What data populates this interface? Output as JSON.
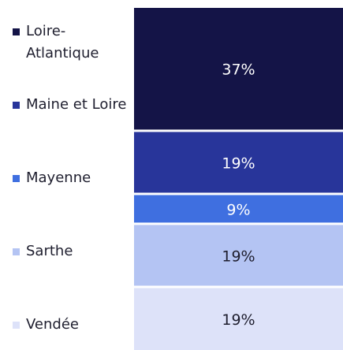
{
  "chart_data": {
    "type": "bar",
    "stacked": true,
    "categories": [
      null
    ],
    "series": [
      {
        "name": "Loire-Atlantique",
        "color": "#141447",
        "label_color": "#ffffff",
        "values": [
          37
        ],
        "value_labels": [
          "37%"
        ]
      },
      {
        "name": "Maine et Loire",
        "color": "#28359a",
        "label_color": "#ffffff",
        "values": [
          19
        ],
        "value_labels": [
          "19%"
        ]
      },
      {
        "name": "Mayenne",
        "color": "#3f6fe0",
        "label_color": "#ffffff",
        "values": [
          9
        ],
        "value_labels": [
          "9%"
        ]
      },
      {
        "name": "Sarthe",
        "color": "#b4c4f3",
        "label_color": "#1e1e2e",
        "values": [
          19
        ],
        "value_labels": [
          "19%"
        ]
      },
      {
        "name": "Vendée",
        "color": "#dde2f9",
        "label_color": "#1e1e2e",
        "values": [
          19
        ],
        "value_labels": [
          "19%"
        ]
      }
    ]
  }
}
